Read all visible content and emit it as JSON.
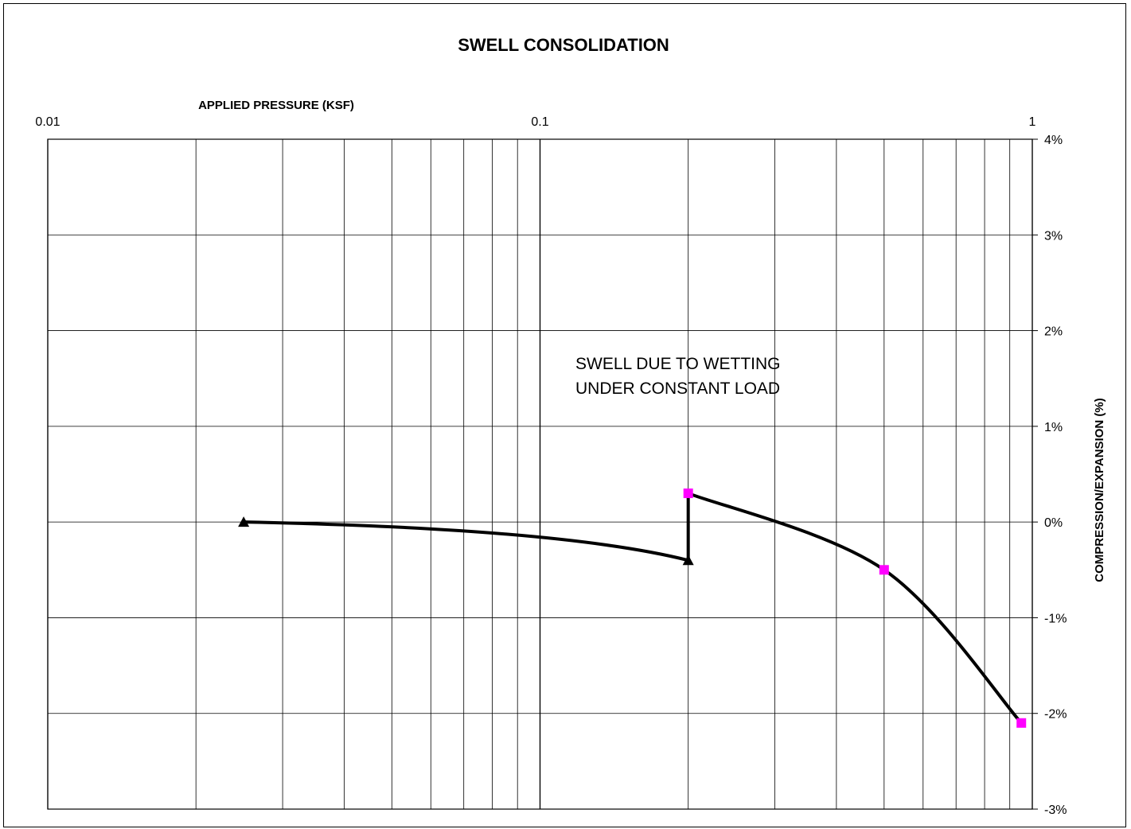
{
  "chart_data": {
    "type": "line",
    "title": "SWELL CONSOLIDATION",
    "xlabel": "APPLIED PRESSURE (KSF)",
    "ylabel": "COMPRESSION/EXPANSION (%)",
    "x_scale": "log",
    "xlim": [
      0.01,
      1
    ],
    "ylim": [
      -3,
      4
    ],
    "x_tick_labels": [
      "0.01",
      "0.1",
      "1"
    ],
    "y_tick_labels": [
      "4%",
      "3%",
      "2%",
      "1%",
      "0%",
      "-1%",
      "-2%",
      "-3%"
    ],
    "y_ticks": [
      4,
      3,
      2,
      1,
      0,
      -1,
      -2,
      -3
    ],
    "grid": true,
    "annotations": [
      "SWELL DUE TO WETTING",
      "UNDER CONSTANT LOAD"
    ],
    "series": [
      {
        "marker": "triangle",
        "marker_color": "#000000",
        "line_color": "#000000",
        "points": [
          {
            "x": 0.025,
            "y": 0.0
          },
          {
            "x": 0.2,
            "y": -0.4
          }
        ]
      },
      {
        "marker": "square",
        "marker_color": "#ff00ff",
        "line_color": "#000000",
        "points": [
          {
            "x": 0.2,
            "y": 0.3
          },
          {
            "x": 0.5,
            "y": -0.5
          },
          {
            "x": 0.95,
            "y": -2.1
          }
        ]
      }
    ]
  }
}
